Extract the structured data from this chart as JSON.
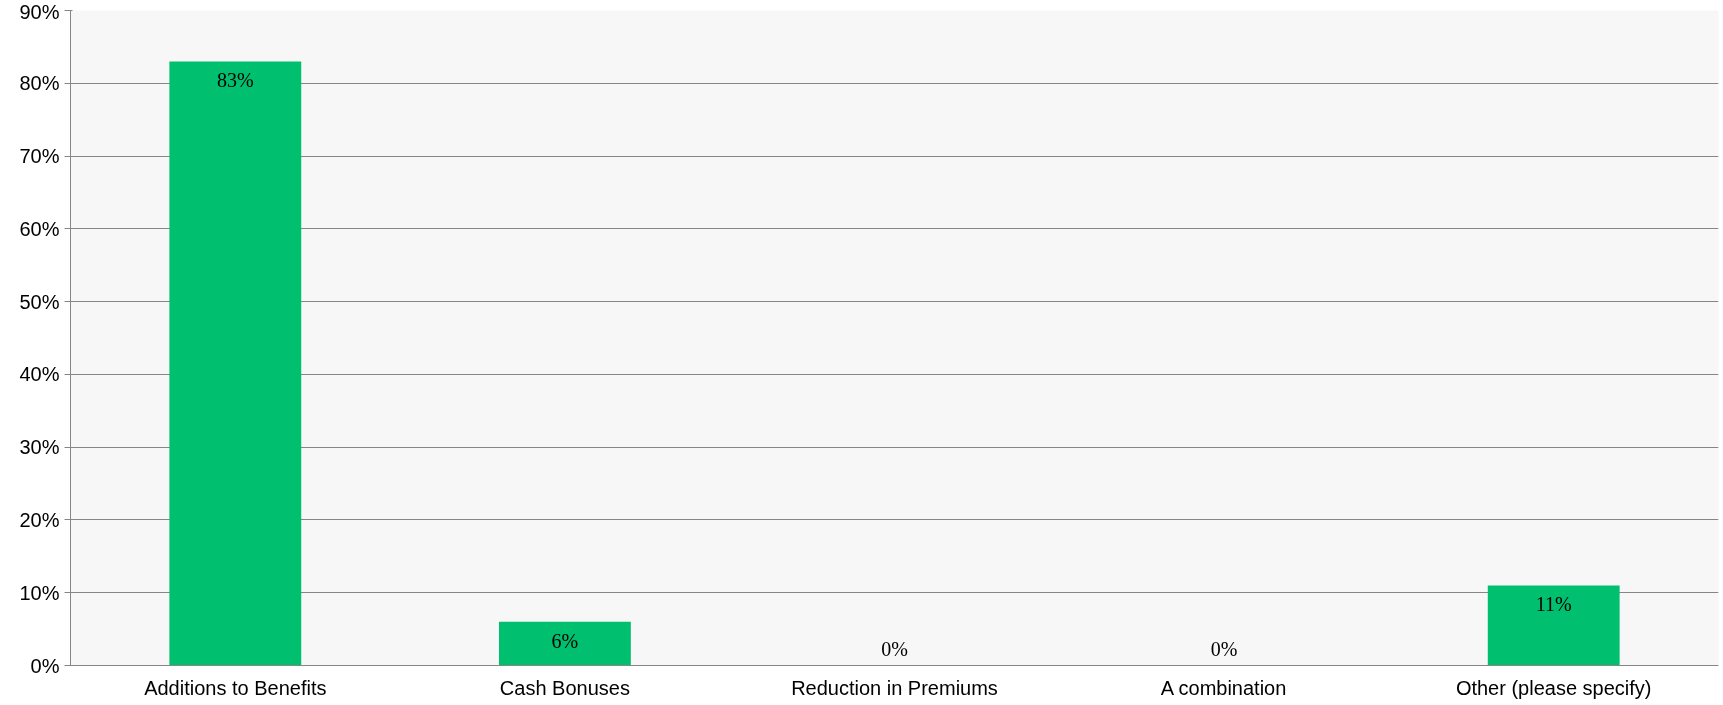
{
  "chart_data": {
    "type": "bar",
    "categories": [
      "Additions to Benefits",
      "Cash Bonuses",
      "Reduction in Premiums",
      "A combination",
      "Other (please specify)"
    ],
    "values": [
      83,
      6,
      0,
      0,
      11
    ],
    "value_labels": [
      "83%",
      "6%",
      "0%",
      "0%",
      "11%"
    ],
    "color": "#00bf6f",
    "ylim": [
      0,
      90
    ],
    "yticks": [
      {
        "value": 0,
        "label": "0%"
      },
      {
        "value": 10,
        "label": "10%"
      },
      {
        "value": 20,
        "label": "20%"
      },
      {
        "value": 30,
        "label": "30%"
      },
      {
        "value": 40,
        "label": "40%"
      },
      {
        "value": 50,
        "label": "50%"
      },
      {
        "value": 60,
        "label": "60%"
      },
      {
        "value": 70,
        "label": "70%"
      },
      {
        "value": 80,
        "label": "80%"
      },
      {
        "value": 90,
        "label": "90%"
      }
    ],
    "grid": "y"
  }
}
